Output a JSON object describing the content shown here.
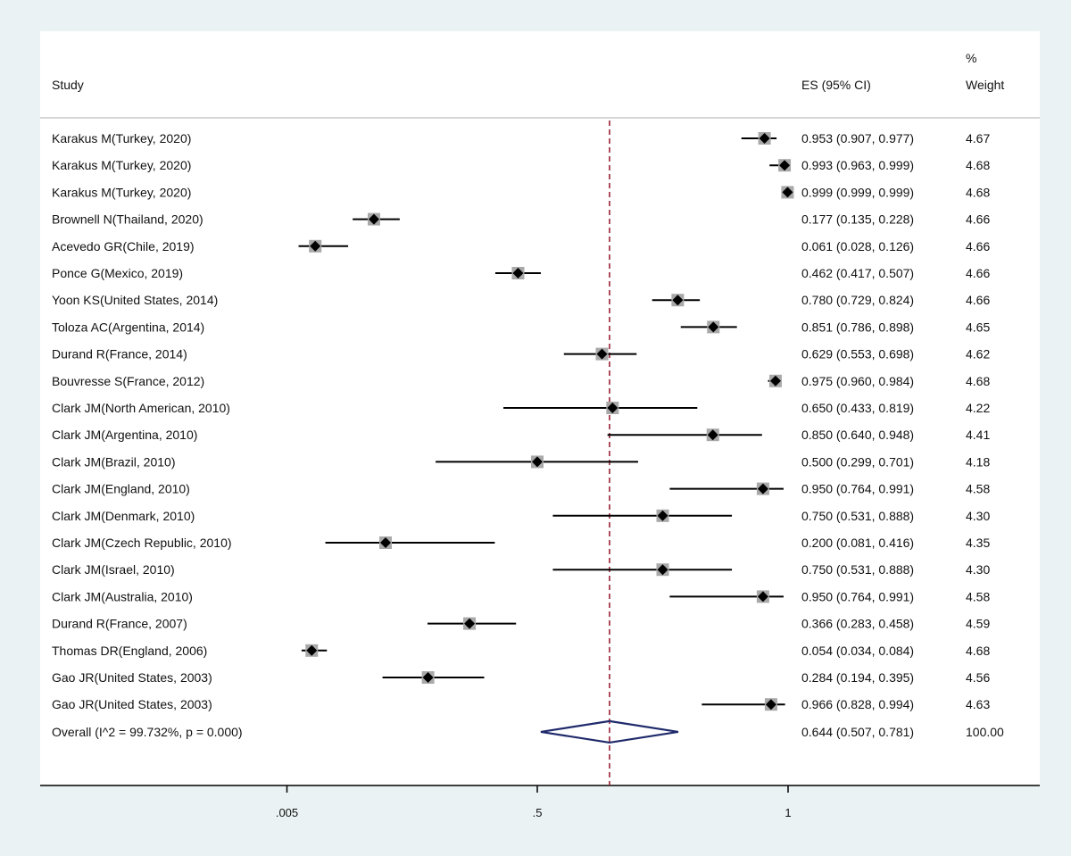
{
  "chart_data": {
    "type": "forest",
    "columns": {
      "study": "Study",
      "es": "ES (95% CI)",
      "weight_line1": "%",
      "weight_line2": "Weight"
    },
    "reference_line": 0.644,
    "x_ticks": [
      {
        "value": 0.005,
        "label": ".005"
      },
      {
        "value": 0.5,
        "label": ".5"
      },
      {
        "value": 1,
        "label": "1"
      }
    ],
    "studies": [
      {
        "label": "Karakus M(Turkey, 2020)",
        "es": 0.953,
        "lo": 0.907,
        "hi": 0.977,
        "es_text": "0.953 (0.907, 0.977)",
        "weight": "4.67"
      },
      {
        "label": "Karakus M(Turkey, 2020)",
        "es": 0.993,
        "lo": 0.963,
        "hi": 0.999,
        "es_text": "0.993 (0.963, 0.999)",
        "weight": "4.68"
      },
      {
        "label": "Karakus M(Turkey, 2020)",
        "es": 0.999,
        "lo": 0.999,
        "hi": 0.999,
        "es_text": "0.999 (0.999, 0.999)",
        "weight": "4.68"
      },
      {
        "label": "Brownell N(Thailand, 2020)",
        "es": 0.177,
        "lo": 0.135,
        "hi": 0.228,
        "es_text": "0.177 (0.135, 0.228)",
        "weight": "4.66"
      },
      {
        "label": "Acevedo GR(Chile, 2019)",
        "es": 0.061,
        "lo": 0.028,
        "hi": 0.126,
        "es_text": "0.061 (0.028, 0.126)",
        "weight": "4.66"
      },
      {
        "label": "Ponce G(Mexico, 2019)",
        "es": 0.462,
        "lo": 0.417,
        "hi": 0.507,
        "es_text": "0.462 (0.417, 0.507)",
        "weight": "4.66"
      },
      {
        "label": "Yoon KS(United States, 2014)",
        "es": 0.78,
        "lo": 0.729,
        "hi": 0.824,
        "es_text": "0.780 (0.729, 0.824)",
        "weight": "4.66"
      },
      {
        "label": "Toloza AC(Argentina, 2014)",
        "es": 0.851,
        "lo": 0.786,
        "hi": 0.898,
        "es_text": "0.851 (0.786, 0.898)",
        "weight": "4.65"
      },
      {
        "label": "Durand R(France, 2014)",
        "es": 0.629,
        "lo": 0.553,
        "hi": 0.698,
        "es_text": "0.629 (0.553, 0.698)",
        "weight": "4.62"
      },
      {
        "label": "Bouvresse S(France, 2012)",
        "es": 0.975,
        "lo": 0.96,
        "hi": 0.984,
        "es_text": "0.975 (0.960, 0.984)",
        "weight": "4.68"
      },
      {
        "label": "Clark JM(North American, 2010)",
        "es": 0.65,
        "lo": 0.433,
        "hi": 0.819,
        "es_text": "0.650 (0.433, 0.819)",
        "weight": "4.22"
      },
      {
        "label": "Clark JM(Argentina, 2010)",
        "es": 0.85,
        "lo": 0.64,
        "hi": 0.948,
        "es_text": "0.850 (0.640, 0.948)",
        "weight": "4.41"
      },
      {
        "label": "Clark JM(Brazil, 2010)",
        "es": 0.5,
        "lo": 0.299,
        "hi": 0.701,
        "es_text": "0.500 (0.299, 0.701)",
        "weight": "4.18"
      },
      {
        "label": "Clark JM(England, 2010)",
        "es": 0.95,
        "lo": 0.764,
        "hi": 0.991,
        "es_text": "0.950 (0.764, 0.991)",
        "weight": "4.58"
      },
      {
        "label": "Clark JM(Denmark, 2010)",
        "es": 0.75,
        "lo": 0.531,
        "hi": 0.888,
        "es_text": "0.750 (0.531, 0.888)",
        "weight": "4.30"
      },
      {
        "label": "Clark JM(Czech Republic, 2010)",
        "es": 0.2,
        "lo": 0.081,
        "hi": 0.416,
        "es_text": "0.200 (0.081, 0.416)",
        "weight": "4.35"
      },
      {
        "label": "Clark JM(Israel, 2010)",
        "es": 0.75,
        "lo": 0.531,
        "hi": 0.888,
        "es_text": "0.750 (0.531, 0.888)",
        "weight": "4.30"
      },
      {
        "label": "Clark JM(Australia, 2010)",
        "es": 0.95,
        "lo": 0.764,
        "hi": 0.991,
        "es_text": "0.950 (0.764, 0.991)",
        "weight": "4.58"
      },
      {
        "label": "Durand R(France, 2007)",
        "es": 0.366,
        "lo": 0.283,
        "hi": 0.458,
        "es_text": "0.366 (0.283, 0.458)",
        "weight": "4.59"
      },
      {
        "label": "Thomas DR(England, 2006)",
        "es": 0.054,
        "lo": 0.034,
        "hi": 0.084,
        "es_text": "0.054 (0.034, 0.084)",
        "weight": "4.68"
      },
      {
        "label": "Gao JR(United States, 2003)",
        "es": 0.284,
        "lo": 0.194,
        "hi": 0.395,
        "es_text": "0.284 (0.194, 0.395)",
        "weight": "4.56"
      },
      {
        "label": "Gao JR(United States, 2003)",
        "es": 0.966,
        "lo": 0.828,
        "hi": 0.994,
        "es_text": "0.966 (0.828, 0.994)",
        "weight": "4.63"
      }
    ],
    "overall": {
      "label": "Overall  (I^2 = 99.732%, p = 0.000)",
      "es": 0.644,
      "lo": 0.507,
      "hi": 0.781,
      "es_text": "0.644 (0.507, 0.781)",
      "weight": "100.00"
    },
    "colors": {
      "background": "#eaf2f3",
      "panel": "#ffffff",
      "marker": "#000000",
      "weight_box": "#a9a9a9",
      "reference_line": "#9b2335",
      "overall_diamond": "#1f2a6b"
    }
  }
}
